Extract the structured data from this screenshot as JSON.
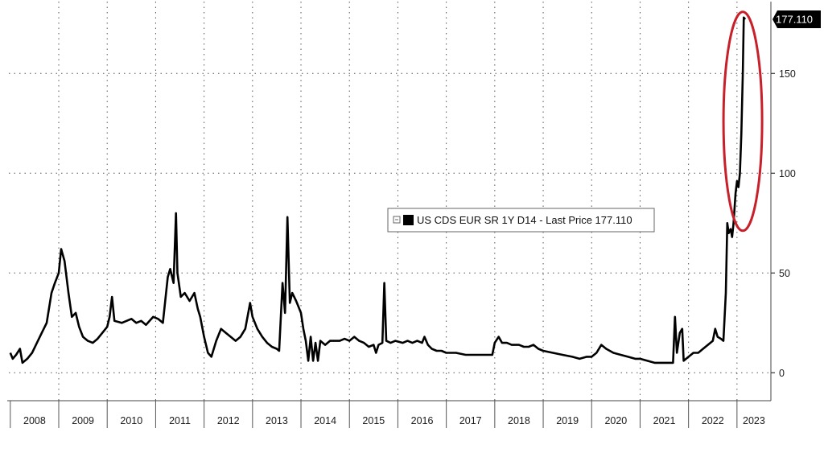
{
  "chart_data": {
    "type": "line",
    "title": "",
    "xlabel": "",
    "ylabel": "",
    "x_ticks": [
      "2008",
      "2009",
      "2010",
      "2011",
      "2012",
      "2013",
      "2014",
      "2015",
      "2016",
      "2017",
      "2018",
      "2019",
      "2020",
      "2021",
      "2022",
      "2023"
    ],
    "y_ticks": [
      0,
      50,
      100,
      150
    ],
    "xlim": [
      2007.97,
      2023.7
    ],
    "ylim": [
      -14,
      186
    ],
    "grid": true,
    "legend_position": "center-right",
    "series": [
      {
        "name": "US CDS EUR SR 1Y D14 - Last Price",
        "last_value": "177.110",
        "color": "#000000",
        "points": [
          [
            2008.0,
            10
          ],
          [
            2008.05,
            7
          ],
          [
            2008.12,
            9
          ],
          [
            2008.2,
            12
          ],
          [
            2008.25,
            5
          ],
          [
            2008.35,
            7
          ],
          [
            2008.45,
            10
          ],
          [
            2008.55,
            15
          ],
          [
            2008.65,
            20
          ],
          [
            2008.75,
            25
          ],
          [
            2008.85,
            40
          ],
          [
            2008.92,
            45
          ],
          [
            2009.0,
            50
          ],
          [
            2009.05,
            62
          ],
          [
            2009.12,
            56
          ],
          [
            2009.2,
            40
          ],
          [
            2009.27,
            28
          ],
          [
            2009.35,
            30
          ],
          [
            2009.42,
            23
          ],
          [
            2009.5,
            18
          ],
          [
            2009.6,
            16
          ],
          [
            2009.7,
            15
          ],
          [
            2009.8,
            17
          ],
          [
            2009.9,
            20
          ],
          [
            2010.0,
            23
          ],
          [
            2010.05,
            28
          ],
          [
            2010.1,
            38
          ],
          [
            2010.15,
            26
          ],
          [
            2010.3,
            25
          ],
          [
            2010.5,
            27
          ],
          [
            2010.6,
            25
          ],
          [
            2010.7,
            26
          ],
          [
            2010.8,
            24
          ],
          [
            2010.95,
            28
          ],
          [
            2011.05,
            27
          ],
          [
            2011.15,
            25
          ],
          [
            2011.25,
            48
          ],
          [
            2011.3,
            52
          ],
          [
            2011.37,
            45
          ],
          [
            2011.42,
            80
          ],
          [
            2011.45,
            50
          ],
          [
            2011.52,
            38
          ],
          [
            2011.6,
            40
          ],
          [
            2011.7,
            36
          ],
          [
            2011.8,
            40
          ],
          [
            2011.87,
            32
          ],
          [
            2011.92,
            28
          ],
          [
            2012.0,
            18
          ],
          [
            2012.08,
            10
          ],
          [
            2012.15,
            8
          ],
          [
            2012.25,
            16
          ],
          [
            2012.35,
            22
          ],
          [
            2012.45,
            20
          ],
          [
            2012.55,
            18
          ],
          [
            2012.65,
            16
          ],
          [
            2012.75,
            18
          ],
          [
            2012.85,
            22
          ],
          [
            2012.95,
            35
          ],
          [
            2013.0,
            28
          ],
          [
            2013.1,
            22
          ],
          [
            2013.2,
            18
          ],
          [
            2013.3,
            15
          ],
          [
            2013.4,
            13
          ],
          [
            2013.5,
            12
          ],
          [
            2013.55,
            11
          ],
          [
            2013.62,
            45
          ],
          [
            2013.67,
            30
          ],
          [
            2013.72,
            78
          ],
          [
            2013.77,
            35
          ],
          [
            2013.82,
            40
          ],
          [
            2013.9,
            36
          ],
          [
            2013.95,
            33
          ],
          [
            2014.0,
            30
          ],
          [
            2014.05,
            22
          ],
          [
            2014.1,
            16
          ],
          [
            2014.15,
            6
          ],
          [
            2014.2,
            18
          ],
          [
            2014.25,
            6
          ],
          [
            2014.3,
            15
          ],
          [
            2014.35,
            6
          ],
          [
            2014.4,
            16
          ],
          [
            2014.5,
            14
          ],
          [
            2014.6,
            16
          ],
          [
            2014.7,
            16
          ],
          [
            2014.8,
            16
          ],
          [
            2014.9,
            17
          ],
          [
            2015.0,
            16
          ],
          [
            2015.1,
            18
          ],
          [
            2015.2,
            16
          ],
          [
            2015.3,
            15
          ],
          [
            2015.4,
            13
          ],
          [
            2015.5,
            14
          ],
          [
            2015.55,
            10
          ],
          [
            2015.6,
            14
          ],
          [
            2015.68,
            15
          ],
          [
            2015.72,
            45
          ],
          [
            2015.76,
            16
          ],
          [
            2015.85,
            15
          ],
          [
            2015.95,
            16
          ],
          [
            2016.1,
            15
          ],
          [
            2016.2,
            16
          ],
          [
            2016.3,
            15
          ],
          [
            2016.4,
            16
          ],
          [
            2016.5,
            15
          ],
          [
            2016.55,
            18
          ],
          [
            2016.62,
            14
          ],
          [
            2016.7,
            12
          ],
          [
            2016.8,
            11
          ],
          [
            2016.9,
            11
          ],
          [
            2017.0,
            10
          ],
          [
            2017.2,
            10
          ],
          [
            2017.4,
            9
          ],
          [
            2017.6,
            9
          ],
          [
            2017.8,
            9
          ],
          [
            2017.95,
            9
          ],
          [
            2018.0,
            15
          ],
          [
            2018.08,
            18
          ],
          [
            2018.15,
            15
          ],
          [
            2018.25,
            15
          ],
          [
            2018.35,
            14
          ],
          [
            2018.5,
            14
          ],
          [
            2018.6,
            13
          ],
          [
            2018.7,
            13
          ],
          [
            2018.8,
            14
          ],
          [
            2018.9,
            12
          ],
          [
            2019.0,
            11
          ],
          [
            2019.2,
            10
          ],
          [
            2019.4,
            9
          ],
          [
            2019.6,
            8
          ],
          [
            2019.75,
            7
          ],
          [
            2019.9,
            8
          ],
          [
            2020.0,
            8
          ],
          [
            2020.1,
            10
          ],
          [
            2020.2,
            14
          ],
          [
            2020.3,
            12
          ],
          [
            2020.45,
            10
          ],
          [
            2020.6,
            9
          ],
          [
            2020.75,
            8
          ],
          [
            2020.9,
            7
          ],
          [
            2021.0,
            7
          ],
          [
            2021.15,
            6
          ],
          [
            2021.3,
            5
          ],
          [
            2021.45,
            5
          ],
          [
            2021.6,
            5
          ],
          [
            2021.68,
            5
          ],
          [
            2021.72,
            28
          ],
          [
            2021.76,
            10
          ],
          [
            2021.82,
            20
          ],
          [
            2021.87,
            22
          ],
          [
            2021.9,
            6
          ],
          [
            2022.0,
            8
          ],
          [
            2022.1,
            10
          ],
          [
            2022.2,
            10
          ],
          [
            2022.3,
            12
          ],
          [
            2022.4,
            14
          ],
          [
            2022.5,
            16
          ],
          [
            2022.55,
            22
          ],
          [
            2022.6,
            18
          ],
          [
            2022.67,
            17
          ],
          [
            2022.72,
            16
          ],
          [
            2022.77,
            40
          ],
          [
            2022.8,
            75
          ],
          [
            2022.83,
            70
          ],
          [
            2022.87,
            72
          ],
          [
            2022.9,
            68
          ],
          [
            2022.93,
            75
          ],
          [
            2022.97,
            90
          ],
          [
            2023.0,
            96
          ],
          [
            2023.03,
            93
          ],
          [
            2023.06,
            100
          ],
          [
            2023.09,
            120
          ],
          [
            2023.12,
            150
          ],
          [
            2023.14,
            178
          ],
          [
            2023.17,
            177.11
          ]
        ]
      }
    ]
  }
}
